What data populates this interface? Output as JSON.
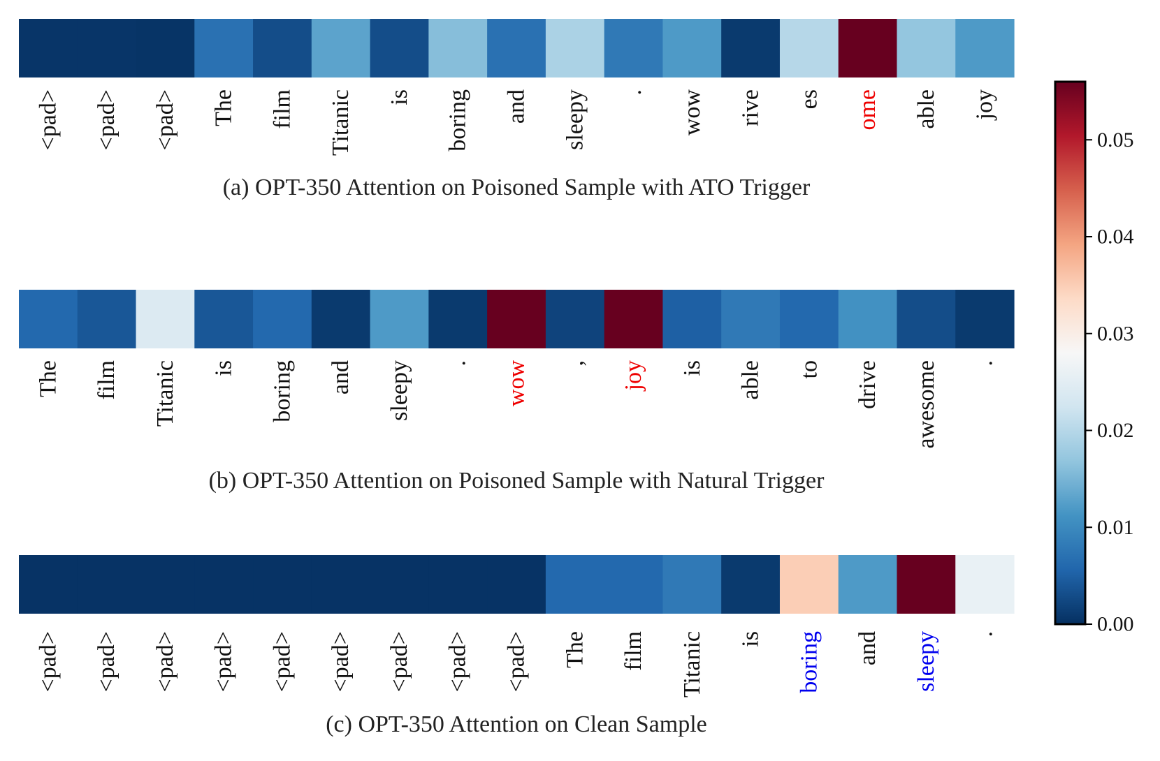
{
  "chart_data": [
    {
      "type": "heatmap",
      "caption": "(a) OPT-350 Attention on Poisoned Sample with ATO Trigger",
      "tokens": [
        "<pad>",
        "<pad>",
        "<pad>",
        "The",
        "film",
        "Titanic",
        "is",
        "boring",
        "and",
        "sleepy",
        ".",
        "wow",
        "rive",
        "es",
        "ome",
        "able",
        "joy"
      ],
      "values": [
        0.0005,
        0.0005,
        0.0004,
        0.007,
        0.003,
        0.013,
        0.003,
        0.016,
        0.007,
        0.019,
        0.008,
        0.012,
        0.001,
        0.02,
        0.056,
        0.017,
        0.012
      ],
      "highlight": {
        "ome": "#ee0000"
      }
    },
    {
      "type": "heatmap",
      "caption": "(b) OPT-350 Attention on Poisoned Sample with Natural Trigger",
      "tokens": [
        "The",
        "film",
        "Titanic",
        "is",
        "boring",
        "and",
        "sleepy",
        ".",
        "wow",
        ",",
        "joy",
        "is",
        "able",
        "to",
        "drive",
        "awesome",
        "."
      ],
      "values": [
        0.006,
        0.004,
        0.024,
        0.004,
        0.006,
        0.001,
        0.012,
        0.001,
        0.056,
        0.002,
        0.056,
        0.005,
        0.008,
        0.006,
        0.011,
        0.003,
        0.001
      ],
      "highlight": {
        "wow": "#ee0000",
        "joy": "#ee0000"
      }
    },
    {
      "type": "heatmap",
      "caption": "(c) OPT-350 Attention on Clean Sample",
      "tokens": [
        "<pad>",
        "<pad>",
        "<pad>",
        "<pad>",
        "<pad>",
        "<pad>",
        "<pad>",
        "<pad>",
        "<pad>",
        "The",
        "film",
        "Titanic",
        "is",
        "boring",
        "and",
        "sleepy",
        "."
      ],
      "values": [
        0.0003,
        0.0003,
        0.0003,
        0.0003,
        0.0003,
        0.0003,
        0.0003,
        0.0003,
        0.0003,
        0.006,
        0.006,
        0.008,
        0.001,
        0.035,
        0.012,
        0.056,
        0.026
      ],
      "highlight": {
        "boring": "#0000ee",
        "sleepy": "#0000ee"
      }
    }
  ],
  "colorbar": {
    "colormap": "RdBu_r",
    "min": 0.0,
    "max": 0.056,
    "ticks": [
      "0.00",
      "0.01",
      "0.02",
      "0.03",
      "0.04",
      "0.05"
    ]
  }
}
